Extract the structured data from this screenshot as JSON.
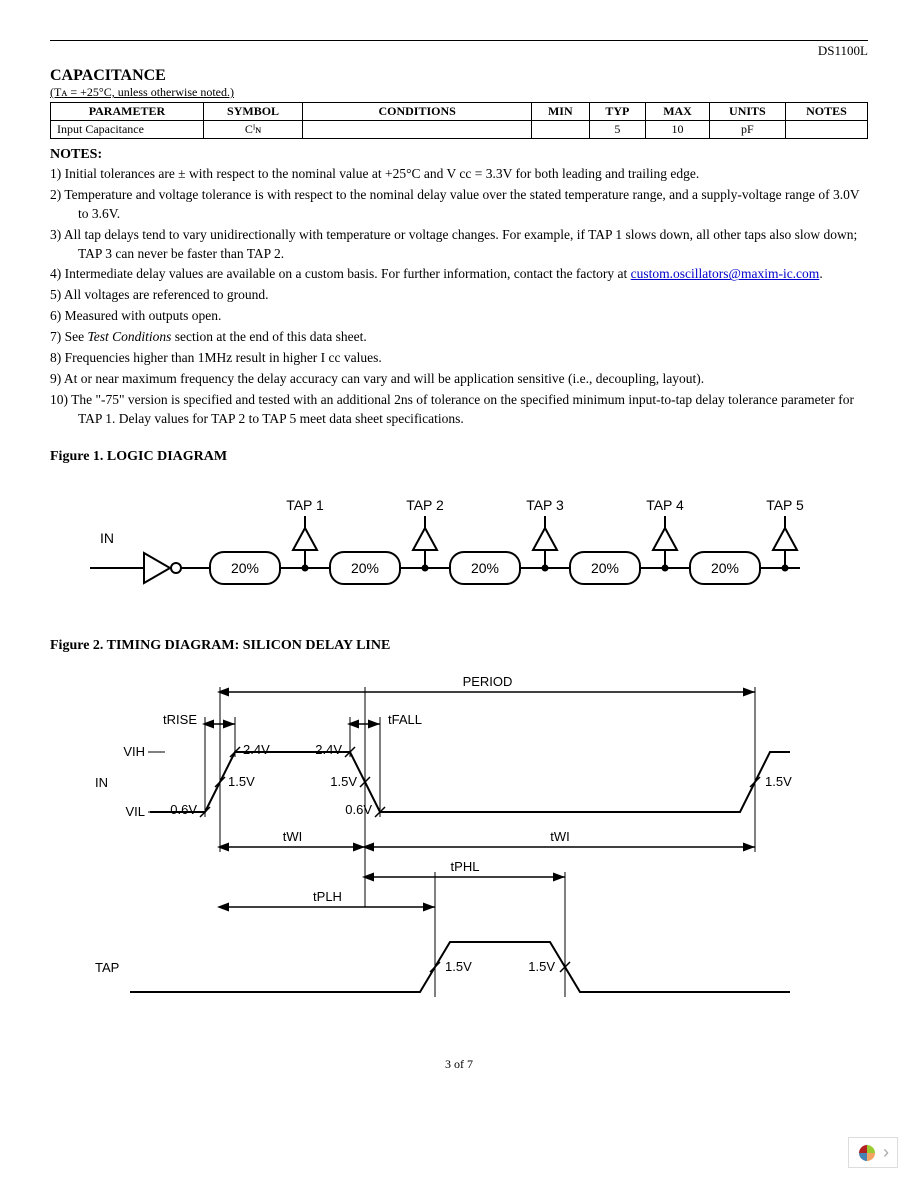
{
  "part_number": "DS1100L",
  "capacitance": {
    "title": "CAPACITANCE",
    "condition_note": "(Tᴀ = +25°C, unless otherwise noted.)",
    "headers": [
      "PARAMETER",
      "SYMBOL",
      "CONDITIONS",
      "MIN",
      "TYP",
      "MAX",
      "UNITS",
      "NOTES"
    ],
    "row": {
      "parameter": "Input Capacitance",
      "symbol": "Cᴵɴ",
      "conditions": "",
      "min": "",
      "typ": "5",
      "max": "10",
      "units": "pF",
      "notes": ""
    }
  },
  "notes_title": "NOTES:",
  "notes": [
    "1)  Initial tolerances are ± with respect to the nominal value at +25°C and V                          cc  = 3.3V for both leading and trailing edge.",
    "2)  Temperature and voltage tolerance is with respect to the nominal delay value over the stated temperature range, and a supply-voltage range of 3.0V to 3.6V.",
    "3)  All tap delays tend to vary unidirectionally with temperature or voltage changes. For example, if TAP 1 slows down, all other taps also slow down; TAP 3 can never be faster than TAP 2.",
    "4)  Intermediate delay values are available on a custom basis. For further information, contact the factory at",
    "5)  All voltages are referenced to ground.",
    "6)  Measured with outputs open.",
    "7)  See Test Conditions section at the end of this data sheet.",
    "8)  Frequencies higher than 1MHz result in higher I                             cc  values.",
    "9)  At or near maximum frequency the delay accuracy can vary and will be application sensitive (i.e., decoupling, layout).",
    "10) The  \"-75\"  version is specified and tested with an additional 2ns of tolerance on the specified minimum input-to-tap delay tolerance parameter  for TAP  1. Delay values for TAP  2  to  TAP  5 meet data sheet specifications."
  ],
  "email_link": "custom.oscillators@maxim-ic.com",
  "figure1": {
    "title": "Figure 1. LOGIC DIAGRAM",
    "in_label": "IN",
    "taps": [
      "TAP 1",
      "TAP 2",
      "TAP 3",
      "TAP 4",
      "TAP 5"
    ],
    "block_label": "20%",
    "colors": {
      "stroke": "#000000",
      "fill": "#ffffff",
      "text": "#000000"
    },
    "font_family": "Arial, Helvetica, sans-serif",
    "font_size_label": 14,
    "font_size_tap": 14
  },
  "figure2": {
    "title": "Figure 2. TIMING DIAGRAM: SILICON DELAY LINE",
    "labels": {
      "in": "IN",
      "tap": "TAP",
      "period": "PERIOD",
      "trise": "tRISE",
      "tfall": "tFALL",
      "vih": "VIH",
      "vil": "VIL",
      "twi": "tWI",
      "tphl": "tPHL",
      "tplh": "tPLH",
      "v15": "1.5V",
      "v24": "2.4V",
      "v06": "0.6V"
    },
    "colors": {
      "stroke": "#000000",
      "text": "#000000",
      "bg": "#ffffff"
    },
    "font_family": "Arial, Helvetica, sans-serif",
    "font_size": 13,
    "line_width": 1.5
  },
  "page_footer": "3 of 7"
}
